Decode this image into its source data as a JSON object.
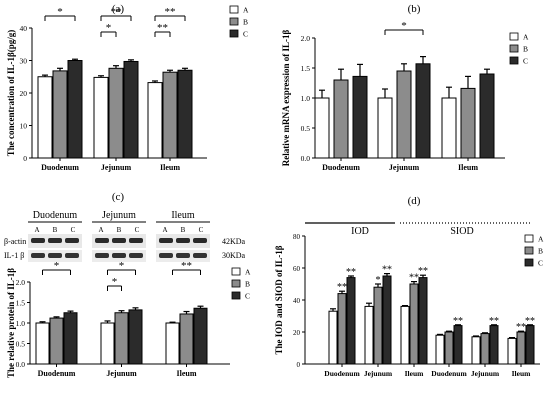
{
  "chart_data": [
    {
      "id": "a",
      "type": "bar",
      "panel_label": "(a)",
      "ylabel": "The concentration of IL-1β(pg/g)",
      "ylim": [
        0,
        40
      ],
      "yticks": [
        "0",
        "10",
        "20",
        "30",
        "40"
      ],
      "categories": [
        "Duodenum",
        "Jejunum",
        "Ileum"
      ],
      "series": [
        {
          "name": "A",
          "fill": "#ffffff",
          "values": [
            25.0,
            24.8,
            23.2
          ],
          "errors": [
            0.5,
            0.5,
            0.5
          ]
        },
        {
          "name": "B",
          "fill": "#8c8c8c",
          "values": [
            26.8,
            27.6,
            26.4
          ],
          "errors": [
            0.8,
            0.8,
            0.6
          ]
        },
        {
          "name": "C",
          "fill": "#2b2b2b",
          "values": [
            30.0,
            29.7,
            27.0
          ],
          "errors": [
            0.4,
            0.5,
            0.6
          ]
        }
      ],
      "significance": [
        {
          "group": 0,
          "from": 0,
          "to": 2,
          "label": "*",
          "level": 1
        },
        {
          "group": 1,
          "from": 0,
          "to": 2,
          "label": "**",
          "level": 1
        },
        {
          "group": 1,
          "from": 0,
          "to": 1,
          "label": "*",
          "level": 2
        },
        {
          "group": 2,
          "from": 0,
          "to": 2,
          "label": "**",
          "level": 1
        },
        {
          "group": 2,
          "from": 0,
          "to": 1,
          "label": "**",
          "level": 2
        }
      ],
      "legend": [
        "A",
        "B",
        "C"
      ],
      "legend_position": "top-right"
    },
    {
      "id": "b",
      "type": "bar",
      "panel_label": "(b)",
      "ylabel": "Relative mRNA expression of IL-1β",
      "ylim": [
        0,
        2.0
      ],
      "yticks": [
        "0.0",
        "0.5",
        "1.0",
        "1.5",
        "2.0"
      ],
      "categories": [
        "Duodenum",
        "Jejunum",
        "Ileum"
      ],
      "series": [
        {
          "name": "A",
          "fill": "#ffffff",
          "values": [
            1.0,
            1.0,
            1.0
          ],
          "errors": [
            0.13,
            0.15,
            0.18
          ]
        },
        {
          "name": "B",
          "fill": "#8c8c8c",
          "values": [
            1.3,
            1.45,
            1.16
          ],
          "errors": [
            0.18,
            0.12,
            0.2
          ]
        },
        {
          "name": "C",
          "fill": "#2b2b2b",
          "values": [
            1.36,
            1.57,
            1.4
          ],
          "errors": [
            0.2,
            0.12,
            0.08
          ]
        }
      ],
      "significance": [
        {
          "group": 1,
          "from": 0,
          "to": 2,
          "label": "*",
          "level": 1
        }
      ],
      "legend": [
        "A",
        "B",
        "C"
      ],
      "legend_position": "right"
    },
    {
      "id": "c",
      "type": "bar",
      "panel_label": "(c)",
      "ylabel": "The relative protein of IL-1β",
      "ylim": [
        0,
        2.0
      ],
      "yticks": [
        "0.0",
        "0.5",
        "1.0",
        "1.5",
        "2.0"
      ],
      "categories": [
        "Duodenum",
        "Jejunum",
        "Ileum"
      ],
      "series": [
        {
          "name": "A",
          "fill": "#ffffff",
          "values": [
            1.0,
            1.0,
            1.0
          ],
          "errors": [
            0.03,
            0.05,
            0.02
          ]
        },
        {
          "name": "B",
          "fill": "#8c8c8c",
          "values": [
            1.12,
            1.25,
            1.22
          ],
          "errors": [
            0.03,
            0.05,
            0.06
          ]
        },
        {
          "name": "C",
          "fill": "#2b2b2b",
          "values": [
            1.25,
            1.32,
            1.36
          ],
          "errors": [
            0.04,
            0.05,
            0.05
          ]
        }
      ],
      "significance": [
        {
          "group": 0,
          "from": 0,
          "to": 2,
          "label": "*",
          "level": 1
        },
        {
          "group": 1,
          "from": 0,
          "to": 2,
          "label": "*",
          "level": 1
        },
        {
          "group": 1,
          "from": 0,
          "to": 1,
          "label": "*",
          "level": 2
        },
        {
          "group": 2,
          "from": 0,
          "to": 2,
          "label": "**",
          "level": 1
        }
      ],
      "blot": {
        "groups": [
          "Duodenum",
          "Jejunum",
          "Ileum"
        ],
        "lanes": [
          "A",
          "B",
          "C"
        ],
        "rows": [
          {
            "label": "β-actin",
            "size": "42KDa"
          },
          {
            "label": "IL-1 β",
            "size": "30KDa"
          }
        ]
      },
      "legend": [
        "A",
        "B",
        "C"
      ],
      "legend_position": "right"
    },
    {
      "id": "d",
      "type": "bar",
      "panel_label": "(d)",
      "ylabel": "The IOD and SIOD of IL-1β",
      "ylim": [
        0,
        80
      ],
      "yticks": [
        "0",
        "20",
        "40",
        "60",
        "80"
      ],
      "section_labels": [
        "IOD",
        "SIOD"
      ],
      "categories": [
        "Duodenum",
        "Jejunum",
        "Ileum",
        "Duodenum",
        "Jejunum",
        "Ileum"
      ],
      "series": [
        {
          "name": "A",
          "fill": "#ffffff",
          "values": [
            33,
            36,
            36,
            18,
            17,
            16
          ],
          "errors": [
            1.5,
            2.0,
            0.5,
            0.5,
            0.5,
            0.5
          ],
          "marks": [
            "",
            "",
            "",
            "",
            "",
            ""
          ]
        },
        {
          "name": "B",
          "fill": "#8c8c8c",
          "values": [
            44,
            48,
            50,
            20,
            19,
            20
          ],
          "errors": [
            1.5,
            2.0,
            1.5,
            0.5,
            0.5,
            0.5
          ],
          "marks": [
            "**",
            "*",
            "**",
            "",
            "",
            "**"
          ]
        },
        {
          "name": "C",
          "fill": "#2b2b2b",
          "values": [
            54,
            55,
            54,
            24,
            24,
            24
          ],
          "errors": [
            1.0,
            1.5,
            1.5,
            0.5,
            0.5,
            0.5
          ],
          "marks": [
            "**",
            "**",
            "**",
            "**",
            "**",
            "**"
          ]
        }
      ],
      "legend": [
        "A",
        "B",
        "C"
      ],
      "legend_position": "top-right"
    }
  ]
}
